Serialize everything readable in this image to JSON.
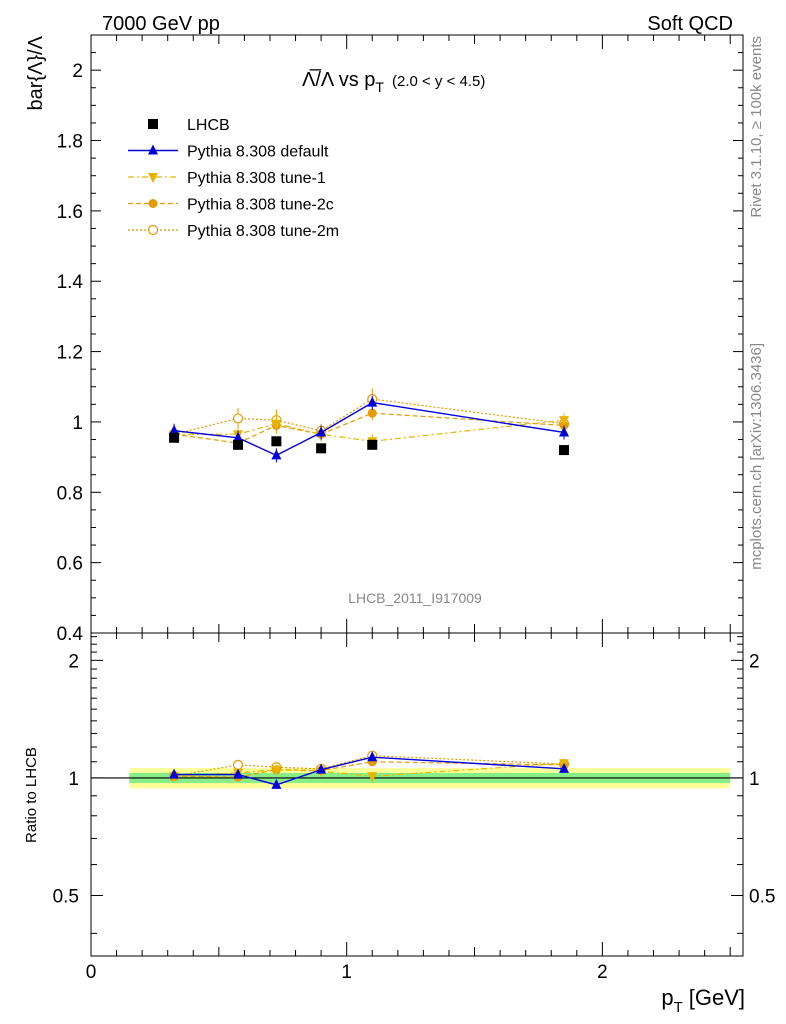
{
  "header": {
    "left": "7000 GeV pp",
    "right": "Soft QCD"
  },
  "side_text": {
    "rivet": "Rivet 3.1.10, ≥ 100k events",
    "mcplots": "mcplots.cern.ch [arXiv:1306.3436]"
  },
  "watermark": "LHCB_2011_I917009",
  "colors": {
    "lhcb": "#000000",
    "default": "#0000dd",
    "tune1": "#e8b400",
    "tune2c": "#e49a00",
    "tune2m": "#e49a00",
    "band_inner": "#88ee88",
    "band_outer": "#ffff99"
  },
  "chart_data": [
    {
      "type": "line",
      "title_main": "Λ̅/Λ vs p",
      "title_sub": "T",
      "title_range": "(2.0 < y < 4.5)",
      "ylabel": "bar{Λ}/Λ",
      "ylim": [
        0.4,
        2.1
      ],
      "yticks": [
        0.4,
        0.6,
        0.8,
        1,
        1.2,
        1.4,
        1.6,
        1.8,
        2
      ],
      "ytick_labels": [
        "0.4",
        "0.6",
        "0.8",
        "1",
        "1.2",
        "1.4",
        "1.6",
        "1.8",
        "2"
      ],
      "xlim": [
        0,
        2.55
      ],
      "x": [
        0.325,
        0.575,
        0.725,
        0.9,
        1.1,
        1.85
      ],
      "series": [
        {
          "name": "LHCB",
          "key": "lhcb",
          "marker": "square",
          "values": [
            0.955,
            0.935,
            0.945,
            0.925,
            0.935,
            0.92
          ],
          "errors": [
            0.01,
            0.01,
            0.01,
            0.01,
            0.01,
            0.01
          ]
        },
        {
          "name": "Pythia 8.308 default",
          "key": "default",
          "marker": "triangle-up",
          "values": [
            0.975,
            0.955,
            0.905,
            0.97,
            1.055,
            0.97
          ],
          "errors": [
            0.02,
            0.02,
            0.02,
            0.02,
            0.02,
            0.02
          ]
        },
        {
          "name": "Pythia 8.308 tune-1",
          "key": "tune1",
          "marker": "triangle-down",
          "values": [
            0.965,
            0.965,
            0.995,
            0.965,
            0.945,
            1.005
          ],
          "errors": [
            0.02,
            0.02,
            0.03,
            0.02,
            0.02,
            0.02
          ]
        },
        {
          "name": "Pythia 8.308 tune-2c",
          "key": "tune2c",
          "marker": "circle",
          "values": [
            0.965,
            0.94,
            0.99,
            0.965,
            1.025,
            0.99
          ],
          "errors": [
            0.02,
            0.02,
            0.02,
            0.02,
            0.02,
            0.02
          ]
        },
        {
          "name": "Pythia 8.308 tune-2m",
          "key": "tune2m",
          "marker": "circle-open",
          "values": [
            0.965,
            1.01,
            1.005,
            0.975,
            1.065,
            0.995
          ],
          "errors": [
            0.02,
            0.03,
            0.03,
            0.02,
            0.03,
            0.02
          ]
        }
      ]
    },
    {
      "type": "line",
      "ylabel": "Ratio to LHCB",
      "ylim": [
        0.35,
        2.35
      ],
      "yticks": [
        0.5,
        1,
        2
      ],
      "ytick_labels": [
        "0.5",
        "1",
        "2"
      ],
      "xlabel": "p",
      "xlabel_sub": "T",
      "xlabel_unit": "[GeV]",
      "xlim": [
        0,
        2.55
      ],
      "xticks": [
        0,
        1,
        2
      ],
      "xtick_labels": [
        "0",
        "1",
        "2"
      ],
      "band_x": [
        0.15,
        2.5
      ],
      "band_inner": [
        0.97,
        1.03
      ],
      "band_outer": [
        0.94,
        1.06
      ],
      "x": [
        0.325,
        0.575,
        0.725,
        0.9,
        1.1,
        1.85
      ],
      "series": [
        {
          "key": "default",
          "marker": "triangle-up",
          "values": [
            1.02,
            1.02,
            0.96,
            1.05,
            1.13,
            1.055
          ]
        },
        {
          "key": "tune1",
          "marker": "triangle-down",
          "values": [
            1.01,
            1.03,
            1.05,
            1.04,
            1.01,
            1.09
          ]
        },
        {
          "key": "tune2c",
          "marker": "circle",
          "values": [
            1.01,
            1.005,
            1.05,
            1.045,
            1.1,
            1.08
          ]
        },
        {
          "key": "tune2m",
          "marker": "circle-open",
          "values": [
            1.01,
            1.08,
            1.065,
            1.055,
            1.14,
            1.085
          ]
        }
      ]
    }
  ]
}
